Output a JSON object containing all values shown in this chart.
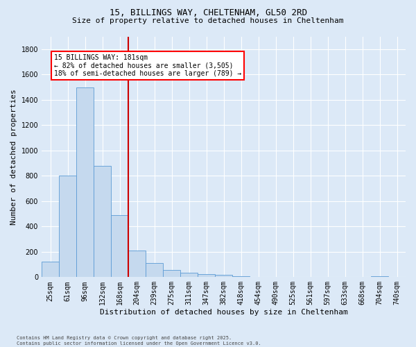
{
  "title_line1": "15, BILLINGS WAY, CHELTENHAM, GL50 2RD",
  "title_line2": "Size of property relative to detached houses in Cheltenham",
  "xlabel": "Distribution of detached houses by size in Cheltenham",
  "ylabel": "Number of detached properties",
  "footer_line1": "Contains HM Land Registry data © Crown copyright and database right 2025.",
  "footer_line2": "Contains public sector information licensed under the Open Government Licence v3.0.",
  "annotation_line1": "15 BILLINGS WAY: 181sqm",
  "annotation_line2": "← 82% of detached houses are smaller (3,505)",
  "annotation_line3": "18% of semi-detached houses are larger (789) →",
  "bar_categories": [
    "25sqm",
    "61sqm",
    "96sqm",
    "132sqm",
    "168sqm",
    "204sqm",
    "239sqm",
    "275sqm",
    "311sqm",
    "347sqm",
    "382sqm",
    "418sqm",
    "454sqm",
    "490sqm",
    "525sqm",
    "561sqm",
    "597sqm",
    "633sqm",
    "668sqm",
    "704sqm",
    "740sqm"
  ],
  "bar_values": [
    120,
    800,
    1500,
    880,
    490,
    210,
    110,
    55,
    35,
    25,
    20,
    10,
    0,
    0,
    0,
    0,
    0,
    0,
    0,
    10,
    0
  ],
  "bar_color": "#c5d9ee",
  "bar_edge_color": "#5b9bd5",
  "vline_color": "#cc0000",
  "vline_x_idx": 4.5,
  "ylim_max": 1900,
  "yticks": [
    0,
    200,
    400,
    600,
    800,
    1000,
    1200,
    1400,
    1600,
    1800
  ],
  "background_color": "#dce9f7",
  "grid_color": "#ffffff",
  "title_fontsize": 9,
  "subtitle_fontsize": 8,
  "ylabel_fontsize": 8,
  "xlabel_fontsize": 8,
  "tick_fontsize": 7,
  "footer_fontsize": 5,
  "annot_fontsize": 7
}
